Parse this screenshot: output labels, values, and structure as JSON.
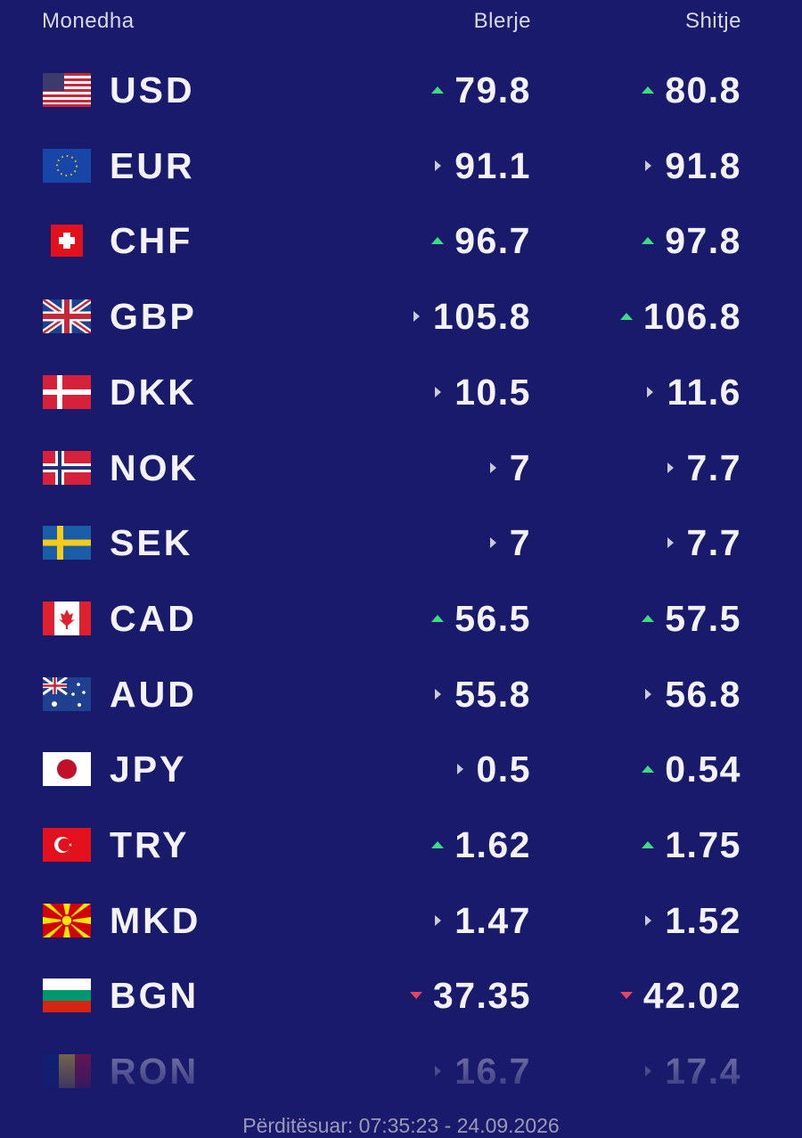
{
  "header": {
    "currency": "Monedha",
    "buy": "Blerje",
    "sell": "Shitje"
  },
  "rows": [
    {
      "code": "USD",
      "buy": "79.8",
      "sell": "80.8",
      "buy_trend": "up",
      "sell_trend": "up"
    },
    {
      "code": "EUR",
      "buy": "91.1",
      "sell": "91.8",
      "buy_trend": "same",
      "sell_trend": "same"
    },
    {
      "code": "CHF",
      "buy": "96.7",
      "sell": "97.8",
      "buy_trend": "up",
      "sell_trend": "up"
    },
    {
      "code": "GBP",
      "buy": "105.8",
      "sell": "106.8",
      "buy_trend": "same",
      "sell_trend": "up"
    },
    {
      "code": "DKK",
      "buy": "10.5",
      "sell": "11.6",
      "buy_trend": "same",
      "sell_trend": "same"
    },
    {
      "code": "NOK",
      "buy": "7",
      "sell": "7.7",
      "buy_trend": "same",
      "sell_trend": "same"
    },
    {
      "code": "SEK",
      "buy": "7",
      "sell": "7.7",
      "buy_trend": "same",
      "sell_trend": "same"
    },
    {
      "code": "CAD",
      "buy": "56.5",
      "sell": "57.5",
      "buy_trend": "up",
      "sell_trend": "up"
    },
    {
      "code": "AUD",
      "buy": "55.8",
      "sell": "56.8",
      "buy_trend": "same",
      "sell_trend": "same"
    },
    {
      "code": "JPY",
      "buy": "0.5",
      "sell": "0.54",
      "buy_trend": "same",
      "sell_trend": "up"
    },
    {
      "code": "TRY",
      "buy": "1.62",
      "sell": "1.75",
      "buy_trend": "up",
      "sell_trend": "up"
    },
    {
      "code": "MKD",
      "buy": "1.47",
      "sell": "1.52",
      "buy_trend": "same",
      "sell_trend": "same"
    },
    {
      "code": "BGN",
      "buy": "37.35",
      "sell": "42.02",
      "buy_trend": "down",
      "sell_trend": "down"
    },
    {
      "code": "RON",
      "buy": "16.7",
      "sell": "17.4",
      "buy_trend": "same",
      "sell_trend": "same"
    }
  ],
  "footer": {
    "updated": "Përditësuar: 07:35:23 - 24.09.2026"
  }
}
